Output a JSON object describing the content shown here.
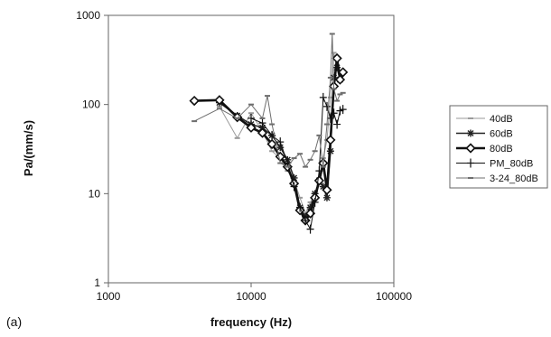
{
  "chart_data": {
    "type": "line",
    "panel_label": "(a)",
    "xlabel": "frequency (Hz)",
    "ylabel": "Pa/(mm/s)",
    "xscale": "log",
    "yscale": "log",
    "xlim": [
      1000,
      100000
    ],
    "ylim": [
      1,
      1000
    ],
    "xticks": [
      1000,
      10000,
      100000
    ],
    "xtick_labels": [
      "1000",
      "10000",
      "100000"
    ],
    "yticks": [
      1,
      10,
      100,
      1000
    ],
    "ytick_labels": [
      "1",
      "10",
      "100",
      "1000"
    ],
    "grid": false,
    "legend_position": "right",
    "series": [
      {
        "name": "40dB",
        "color": "#9a9a9a",
        "marker": "dash",
        "x": [
          6000,
          8000,
          10000,
          12000,
          14000,
          16000,
          18000,
          20000,
          22000,
          24000,
          26000,
          28000,
          30000,
          32000,
          34000,
          36000,
          38000,
          40000,
          42000
        ],
        "y": [
          95,
          42,
          80,
          50,
          30,
          25,
          18,
          14,
          9,
          6,
          8,
          10,
          15,
          25,
          40,
          120,
          380,
          250,
          180
        ]
      },
      {
        "name": "60dB",
        "color": "#222222",
        "marker": "asterisk",
        "x": [
          6000,
          8000,
          10000,
          12000,
          14000,
          16000,
          18000,
          20000,
          22000,
          24000,
          26000,
          28000,
          30000,
          32000,
          34000,
          36000,
          38000,
          40000,
          42000
        ],
        "y": [
          105,
          75,
          60,
          55,
          45,
          33,
          24,
          15,
          7,
          5.5,
          7,
          10,
          14,
          12,
          9,
          30,
          200,
          260,
          190
        ]
      },
      {
        "name": "80dB",
        "color": "#111111",
        "marker": "diamond",
        "x": [
          4000,
          6000,
          8000,
          10000,
          12000,
          14000,
          16000,
          18000,
          20000,
          22000,
          24000,
          26000,
          28000,
          30000,
          32000,
          34000,
          36000,
          38000,
          40000,
          42000,
          44000
        ],
        "y": [
          110,
          112,
          72,
          55,
          48,
          36,
          26,
          20,
          13,
          6.5,
          5,
          6,
          9,
          14,
          22,
          11,
          40,
          160,
          330,
          190,
          230
        ]
      },
      {
        "name": "PM_80dB",
        "color": "#111111",
        "marker": "plus",
        "x": [
          10000,
          12000,
          14000,
          16000,
          18000,
          20000,
          22000,
          24000,
          26000,
          28000,
          30000,
          32000,
          34000,
          36000,
          38000,
          40000,
          42000,
          44000
        ],
        "y": [
          70,
          62,
          45,
          38,
          22,
          12,
          7,
          5,
          4,
          8,
          18,
          120,
          95,
          70,
          80,
          60,
          85,
          88
        ]
      },
      {
        "name": "3-24_80dB",
        "color": "#6e6e6e",
        "marker": "dash",
        "x": [
          4000,
          6000,
          8000,
          10000,
          12000,
          13000,
          14000,
          16000,
          18000,
          20000,
          22000,
          24000,
          26000,
          28000,
          30000,
          32000,
          34000,
          36000,
          37000,
          38000,
          40000,
          42000,
          44000
        ],
        "y": [
          65,
          90,
          70,
          100,
          70,
          125,
          60,
          22,
          20,
          25,
          28,
          20,
          24,
          30,
          45,
          20,
          60,
          200,
          620,
          150,
          110,
          130,
          135
        ]
      }
    ]
  }
}
